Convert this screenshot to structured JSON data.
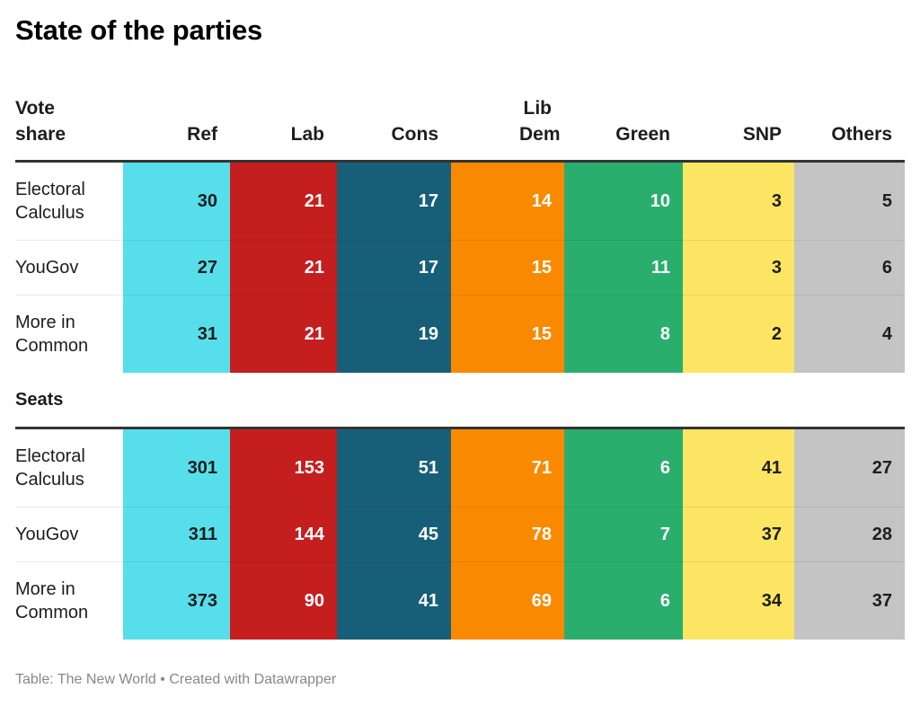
{
  "title": "State of the parties",
  "footer": "Table: The New World • Created with Datawrapper",
  "chart_data": {
    "type": "table",
    "title": "State of the parties",
    "columns": [
      {
        "key": "ref",
        "label": "Ref",
        "color": "#56dfea",
        "text": "dark"
      },
      {
        "key": "lab",
        "label": "Lab",
        "color": "#c51e1f",
        "text": "light"
      },
      {
        "key": "cons",
        "label": "Cons",
        "color": "#175f78",
        "text": "light"
      },
      {
        "key": "libdem",
        "label": "Lib Dem",
        "color": "#f98a00",
        "text": "light"
      },
      {
        "key": "green",
        "label": "Green",
        "color": "#2aae6d",
        "text": "light"
      },
      {
        "key": "snp",
        "label": "SNP",
        "color": "#fce562",
        "text": "dark"
      },
      {
        "key": "others",
        "label": "Others",
        "color": "#c4c4c4",
        "text": "dark"
      }
    ],
    "sections": [
      {
        "heading": "Vote share",
        "rows": [
          {
            "label": "Electoral Calculus",
            "values": [
              30,
              21,
              17,
              14,
              10,
              3,
              5
            ]
          },
          {
            "label": "YouGov",
            "values": [
              27,
              21,
              17,
              15,
              11,
              3,
              6
            ]
          },
          {
            "label": "More in Common",
            "values": [
              31,
              21,
              19,
              15,
              8,
              2,
              4
            ]
          }
        ]
      },
      {
        "heading": "Seats",
        "rows": [
          {
            "label": "Electoral Calculus",
            "values": [
              301,
              153,
              51,
              71,
              6,
              41,
              27
            ]
          },
          {
            "label": "YouGov",
            "values": [
              311,
              144,
              45,
              78,
              7,
              37,
              28
            ]
          },
          {
            "label": "More in Common",
            "values": [
              373,
              90,
              41,
              69,
              6,
              34,
              37
            ]
          }
        ]
      }
    ]
  }
}
